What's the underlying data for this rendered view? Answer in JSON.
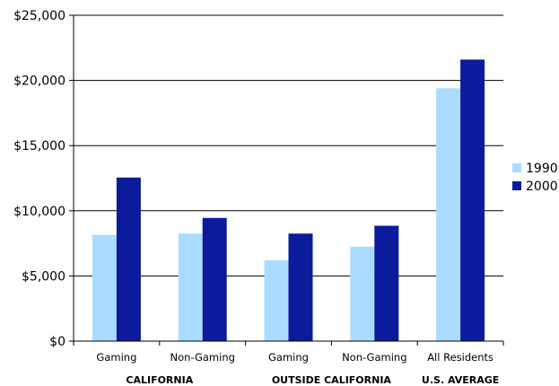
{
  "chart_data": {
    "type": "bar",
    "categories": [
      "Gaming",
      "Non-Gaming",
      "Gaming",
      "Non-Gaming",
      "All Residents"
    ],
    "groups": [
      {
        "label": "CALIFORNIA",
        "span": [
          0,
          1
        ]
      },
      {
        "label": "OUTSIDE CALIFORNIA",
        "span": [
          2,
          3
        ]
      },
      {
        "label": "U.S. AVERAGE",
        "span": [
          4,
          4
        ]
      }
    ],
    "series": [
      {
        "name": "1990",
        "color": "#aadcff",
        "values": [
          8150,
          8250,
          6200,
          7250,
          19400
        ]
      },
      {
        "name": "2000",
        "color": "#0b1b9c",
        "values": [
          12550,
          9450,
          8250,
          8850,
          21600
        ]
      }
    ],
    "yticks": [
      "$0",
      "$5,000",
      "$10,000",
      "$15,000",
      "$20,000",
      "$25,000"
    ],
    "ylim": [
      0,
      25000
    ],
    "grid": true,
    "legend": "right"
  }
}
